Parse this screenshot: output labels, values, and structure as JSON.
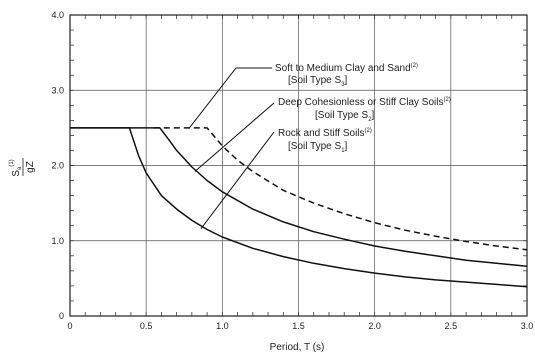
{
  "chart_data": {
    "type": "line",
    "xlabel": "Period, T (s)",
    "ylabel": {
      "main": "S",
      "sub": "a",
      "sup": "(1)",
      "den_main": "gZ",
      "den_sup": ""
    },
    "xlim": [
      0,
      3.0
    ],
    "ylim": [
      0,
      4.0
    ],
    "x_ticks": [
      "0",
      "0.5",
      "1.0",
      "1.5",
      "2.0",
      "2.5",
      "3.0"
    ],
    "y_ticks": [
      "0",
      "1.0",
      "2.0",
      "3.0",
      "4.0"
    ],
    "x_tick_values": [
      0,
      0.5,
      1.0,
      1.5,
      2.0,
      2.5,
      3.0
    ],
    "y_tick_values": [
      0,
      1.0,
      2.0,
      3.0,
      4.0
    ],
    "x_minor_step": 0.1,
    "y_minor_step": 0.2,
    "grid": true,
    "series": [
      {
        "name": "Rock and Stiff Soils",
        "style": "solid",
        "x": [
          0,
          0.39,
          0.45,
          0.5,
          0.6,
          0.7,
          0.8,
          0.9,
          1.0,
          1.2,
          1.4,
          1.6,
          1.8,
          2.0,
          2.2,
          2.4,
          2.6,
          2.8,
          3.0
        ],
        "y": [
          2.5,
          2.5,
          2.13,
          1.9,
          1.6,
          1.42,
          1.27,
          1.15,
          1.05,
          0.9,
          0.79,
          0.7,
          0.63,
          0.57,
          0.52,
          0.48,
          0.45,
          0.42,
          0.39
        ]
      },
      {
        "name": "Deep Cohesionless or Stiff Clay Soils",
        "style": "solid",
        "x": [
          0,
          0.59,
          0.65,
          0.7,
          0.8,
          0.9,
          1.0,
          1.2,
          1.4,
          1.6,
          1.8,
          2.0,
          2.2,
          2.4,
          2.6,
          2.8,
          3.0
        ],
        "y": [
          2.5,
          2.5,
          2.34,
          2.2,
          1.98,
          1.8,
          1.65,
          1.42,
          1.25,
          1.12,
          1.02,
          0.93,
          0.86,
          0.8,
          0.74,
          0.7,
          0.66
        ]
      },
      {
        "name": "Soft to Medium Clay and Sand",
        "style": "dashed",
        "x": [
          0.55,
          0.9,
          1.0,
          1.1,
          1.2,
          1.4,
          1.6,
          1.8,
          2.0,
          2.2,
          2.4,
          2.6,
          2.8,
          3.0
        ],
        "y": [
          2.5,
          2.5,
          2.26,
          2.07,
          1.92,
          1.67,
          1.5,
          1.36,
          1.24,
          1.14,
          1.06,
          0.99,
          0.93,
          0.88
        ]
      }
    ],
    "annotations": [
      {
        "name": "soft-clay",
        "line1": "Soft to Medium Clay and Sand",
        "line1_sup": "(2)",
        "line2a": "[Soil Type S",
        "line2_sub": "3",
        "line2b": "]"
      },
      {
        "name": "deep-cohesionless",
        "line1": "Deep Cohesionless or Stiff Clay Soils",
        "line1_sup": "(2)",
        "line2a": "[Soil Type S",
        "line2_sub": "2",
        "line2b": "]"
      },
      {
        "name": "rock-stiff",
        "line1": "Rock and Stiff Soils",
        "line1_sup": "(2)",
        "line2a": "[Soil Type S",
        "line2_sub": "1",
        "line2b": "]"
      }
    ]
  }
}
